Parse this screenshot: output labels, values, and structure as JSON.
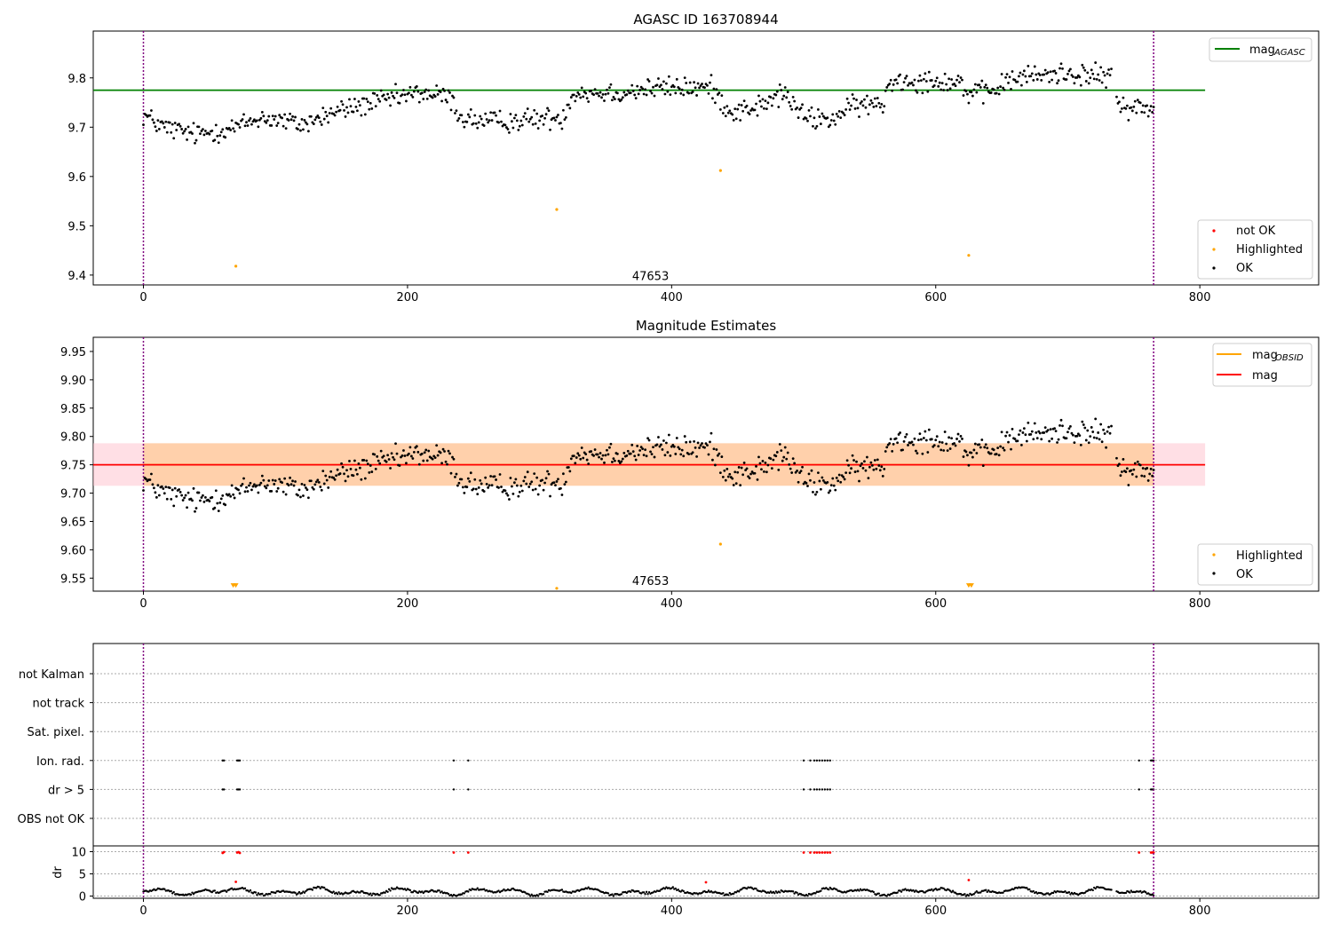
{
  "chart_data": [
    {
      "type": "scatter",
      "title": "AGASC ID 163708944",
      "xlim": [
        -38,
        890
      ],
      "ylim": [
        9.38,
        9.895
      ],
      "xticks": [
        0,
        200,
        400,
        600,
        800
      ],
      "yticks": [
        9.4,
        9.5,
        9.6,
        9.7,
        9.8
      ],
      "obsid_label": "47653",
      "obsid_label_x": 384,
      "obsid_bounds": [
        0,
        765
      ],
      "mag_agasc": 9.775,
      "mag_agasc_xrange": [
        -38,
        804
      ],
      "highlighted_points": [
        [
          70,
          9.418
        ],
        [
          313,
          9.533
        ],
        [
          437,
          9.612
        ],
        [
          625,
          9.44
        ]
      ],
      "legend_top": [
        {
          "label": "mag",
          "sub": "AGASC",
          "color": "#008000"
        }
      ],
      "legend_bottom": [
        {
          "label": "not OK",
          "color": "#ff0000"
        },
        {
          "label": "Highlighted",
          "color": "#ffa500"
        },
        {
          "label": "OK",
          "color": "#000000"
        }
      ],
      "ok_series_trend": [
        [
          0,
          9.725
        ],
        [
          15,
          9.7
        ],
        [
          40,
          9.685
        ],
        [
          70,
          9.7
        ],
        [
          90,
          9.72
        ],
        [
          120,
          9.705
        ],
        [
          150,
          9.735
        ],
        [
          175,
          9.75
        ],
        [
          210,
          9.77
        ],
        [
          232,
          9.76
        ],
        [
          240,
          9.72
        ],
        [
          260,
          9.71
        ],
        [
          290,
          9.715
        ],
        [
          318,
          9.72
        ],
        [
          325,
          9.77
        ],
        [
          360,
          9.77
        ],
        [
          390,
          9.78
        ],
        [
          430,
          9.78
        ],
        [
          445,
          9.73
        ],
        [
          470,
          9.745
        ],
        [
          485,
          9.77
        ],
        [
          500,
          9.72
        ],
        [
          520,
          9.715
        ],
        [
          540,
          9.745
        ],
        [
          560,
          9.745
        ],
        [
          565,
          9.795
        ],
        [
          600,
          9.795
        ],
        [
          620,
          9.79
        ],
        [
          625,
          9.765
        ],
        [
          640,
          9.77
        ],
        [
          660,
          9.8
        ],
        [
          700,
          9.81
        ],
        [
          735,
          9.8
        ],
        [
          738,
          9.745
        ],
        [
          765,
          9.735
        ]
      ],
      "ok_series_gaps": [
        [
          733,
          737
        ]
      ]
    },
    {
      "type": "scatter",
      "title": "Magnitude Estimates",
      "xlim": [
        -38,
        890
      ],
      "ylim": [
        9.527,
        9.975
      ],
      "xticks": [
        0,
        200,
        400,
        600,
        800
      ],
      "yticks": [
        9.55,
        9.6,
        9.65,
        9.7,
        9.75,
        9.8,
        9.85,
        9.9,
        9.95
      ],
      "obsid_label": "47653",
      "obsid_label_x": 384,
      "obsid_bounds": [
        0,
        765
      ],
      "mag": 9.75,
      "mag_band": [
        9.713,
        9.788
      ],
      "mag_obsid": 9.75,
      "mag_obsid_band": [
        9.713,
        9.788
      ],
      "highlighted_points": [
        [
          313,
          9.532
        ],
        [
          437,
          9.61
        ]
      ],
      "clipped_points": [
        [
          68,
          9.533
        ],
        [
          70,
          9.533
        ],
        [
          625,
          9.533
        ],
        [
          627,
          9.533
        ]
      ],
      "legend_top": [
        {
          "label": "mag",
          "sub": "OBSID",
          "color": "#ffa500"
        },
        {
          "label": "mag",
          "sub": "",
          "color": "#ff0000"
        }
      ],
      "legend_bottom": [
        {
          "label": "Highlighted",
          "color": "#ffa500"
        },
        {
          "label": "OK",
          "color": "#000000"
        }
      ]
    },
    {
      "type": "scatter",
      "xlim": [
        -38,
        890
      ],
      "xticks": [
        0,
        200,
        400,
        600,
        800
      ],
      "flag_rows": [
        "not Kalman",
        "not track",
        "Sat. pixel.",
        "Ion. rad.",
        "dr > 5",
        "OBS not OK"
      ],
      "flag_times": {
        "Ion. rad.": [
          60,
          61,
          71,
          72,
          73,
          235,
          246,
          500,
          505,
          508,
          510,
          512,
          514,
          516,
          518,
          520,
          754,
          763,
          764,
          765
        ],
        "dr > 5": [
          60,
          61,
          71,
          72,
          73,
          235,
          246,
          500,
          505,
          508,
          510,
          512,
          514,
          516,
          518,
          520,
          754,
          763,
          764,
          765
        ]
      },
      "dr": {
        "ylabel": "dr",
        "ylim": [
          -0.5,
          11.3
        ],
        "yticks": [
          0,
          5,
          10
        ],
        "threshold": 5,
        "red_points": [
          [
            60,
            9.7
          ],
          [
            61,
            9.9
          ],
          [
            71,
            9.8
          ],
          [
            72,
            9.9
          ],
          [
            73,
            9.7
          ],
          [
            235,
            9.8
          ],
          [
            246,
            9.8
          ],
          [
            500,
            9.8
          ],
          [
            505,
            9.8
          ],
          [
            508,
            9.8
          ],
          [
            510,
            9.8
          ],
          [
            512,
            9.8
          ],
          [
            514,
            9.8
          ],
          [
            516,
            9.8
          ],
          [
            518,
            9.8
          ],
          [
            520,
            9.8
          ],
          [
            754,
            9.8
          ],
          [
            763,
            9.8
          ],
          [
            764,
            9.8
          ],
          [
            765,
            9.8
          ],
          [
            70,
            3.2
          ],
          [
            426,
            3.1
          ],
          [
            625,
            3.6
          ]
        ]
      },
      "obsid_bounds": [
        0,
        765
      ]
    }
  ]
}
